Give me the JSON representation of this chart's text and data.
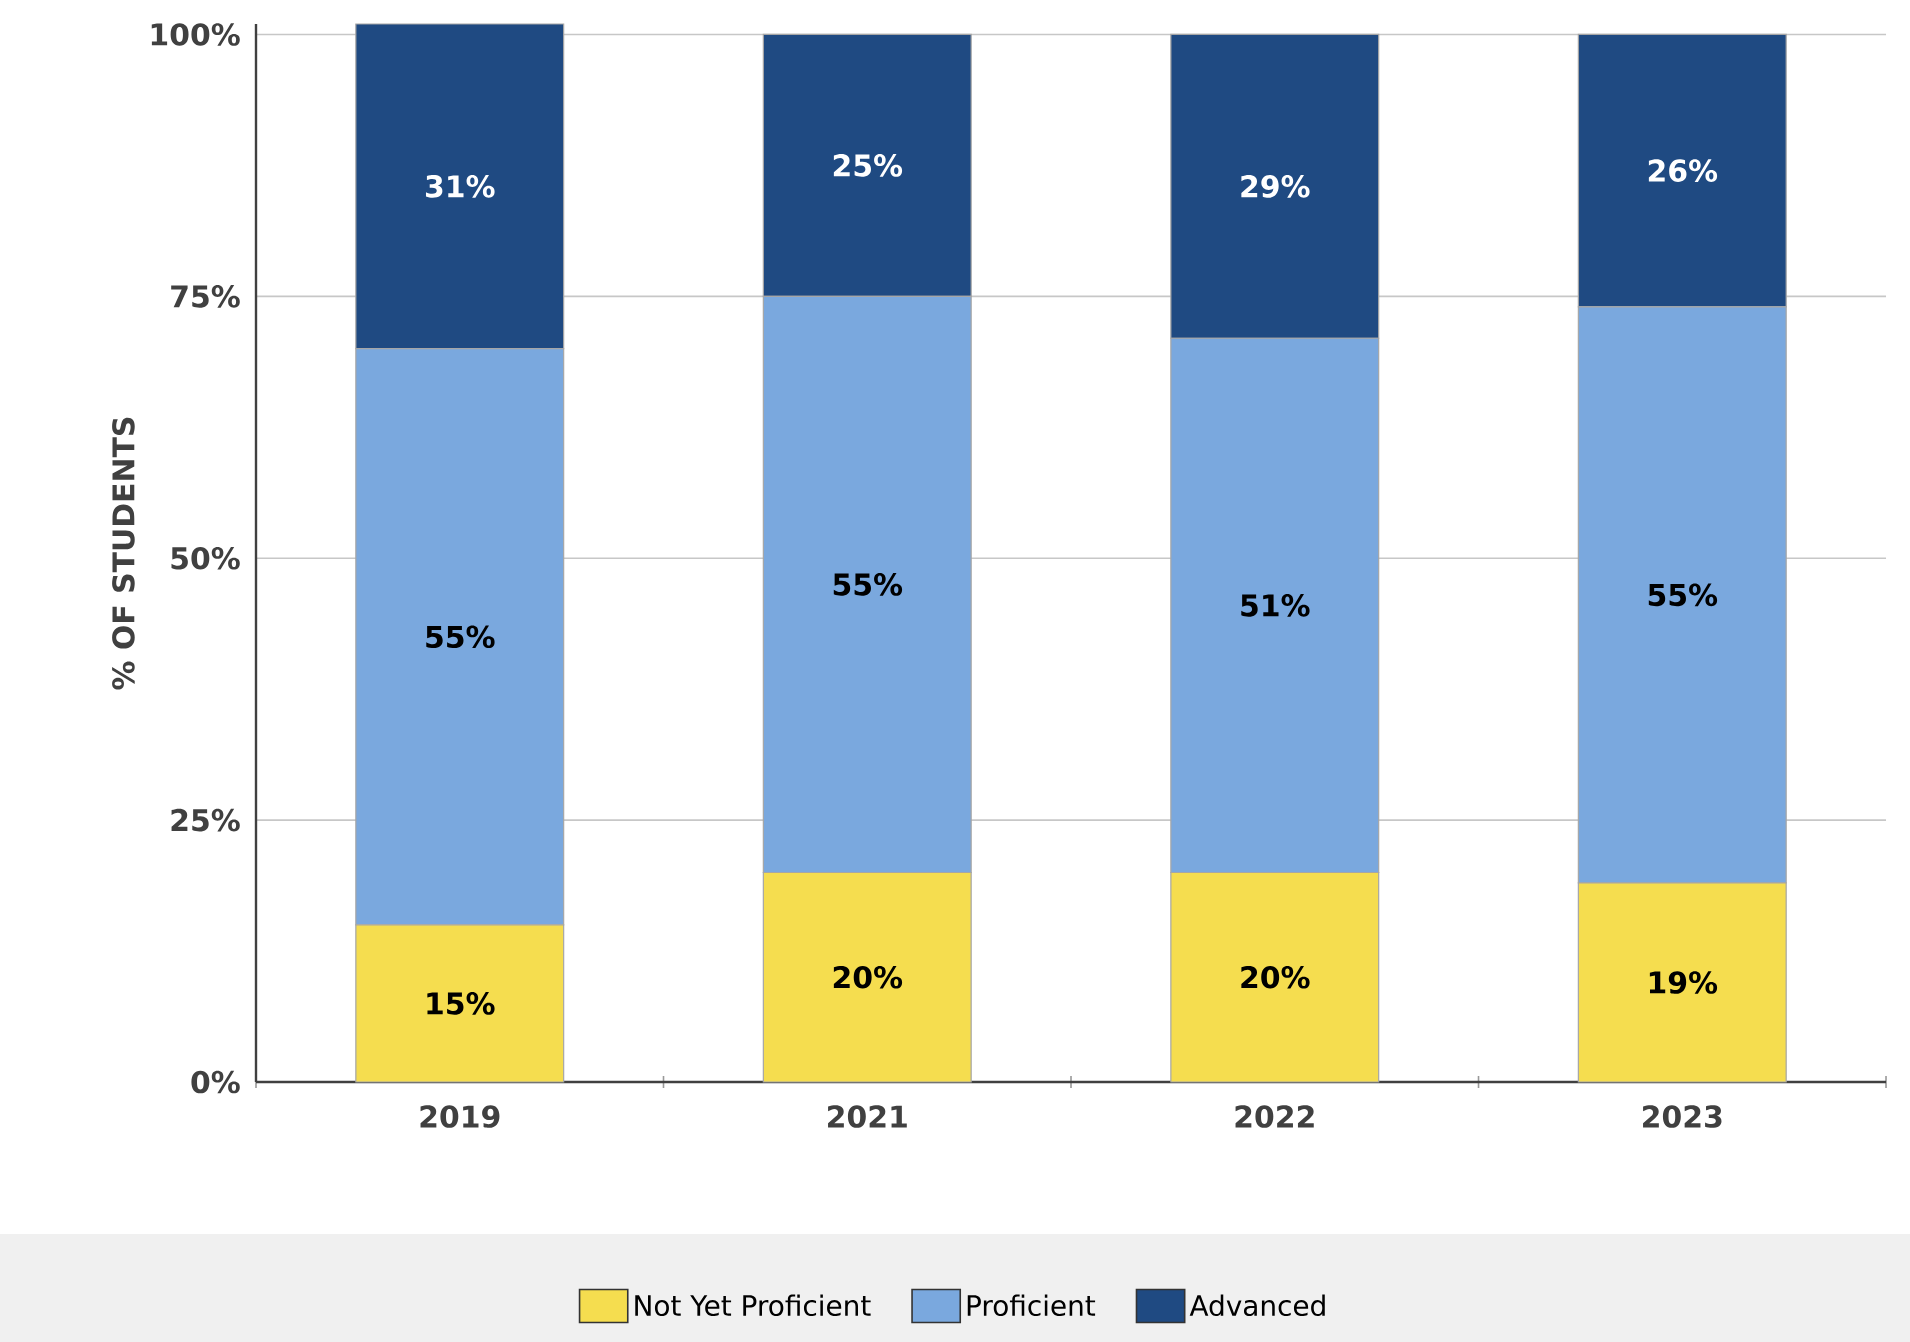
{
  "chart_data": {
    "type": "bar",
    "stacked": true,
    "ylabel": "% OF STUDENTS",
    "categories": [
      "2019",
      "2021",
      "2022",
      "2023"
    ],
    "series": [
      {
        "name": "Not Yet Proficient",
        "color": "#f5dd4f",
        "values": [
          15,
          20,
          20,
          19
        ],
        "value_labels": [
          "15%",
          "20%",
          "20%",
          "19%"
        ]
      },
      {
        "name": "Proficient",
        "color": "#7aa8de",
        "values": [
          55,
          55,
          51,
          55
        ],
        "value_labels": [
          "55%",
          "55%",
          "51%",
          "55%"
        ]
      },
      {
        "name": "Advanced",
        "color": "#1f4a82",
        "values": [
          31,
          25,
          29,
          26
        ],
        "value_labels": [
          "31%",
          "25%",
          "29%",
          "26%"
        ]
      }
    ],
    "ylim": [
      0,
      101
    ],
    "yticks": [
      {
        "value": 0,
        "label": "0%"
      },
      {
        "value": 25,
        "label": "25%"
      },
      {
        "value": 50,
        "label": "50%"
      },
      {
        "value": 75,
        "label": "75%"
      },
      {
        "value": 100,
        "label": "100%"
      }
    ],
    "grid": "y",
    "legend": "bottom"
  }
}
